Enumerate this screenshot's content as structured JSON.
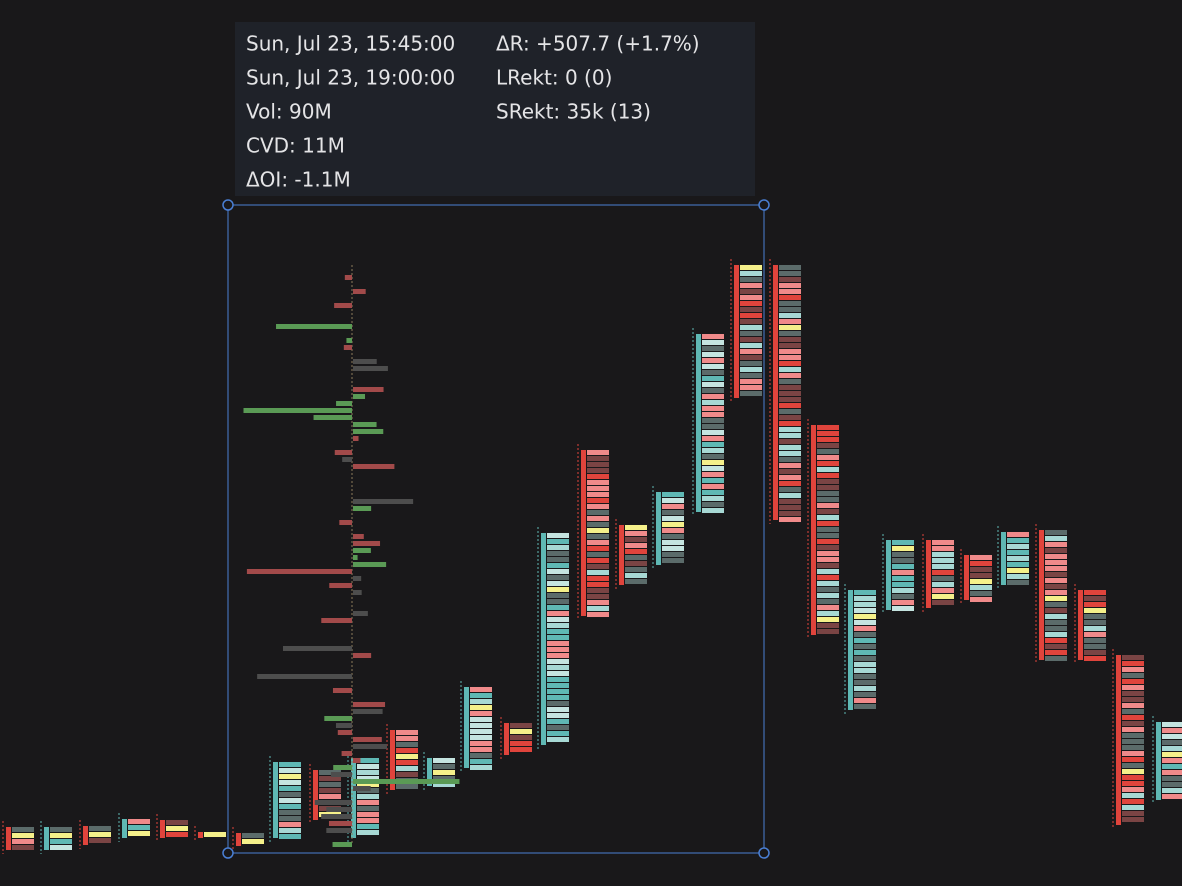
{
  "tooltip": {
    "left": [
      "Sun, Jul 23, 15:45:00",
      "Sun, Jul 23, 19:00:00",
      "Vol: 90M",
      "CVD: 11M",
      "ΔOI: -1.1M"
    ],
    "right": [
      "ΔR: +507.7 (+1.7%)",
      "LRekt: 0 (0)",
      "SRekt: 35k (13)"
    ]
  }
}
